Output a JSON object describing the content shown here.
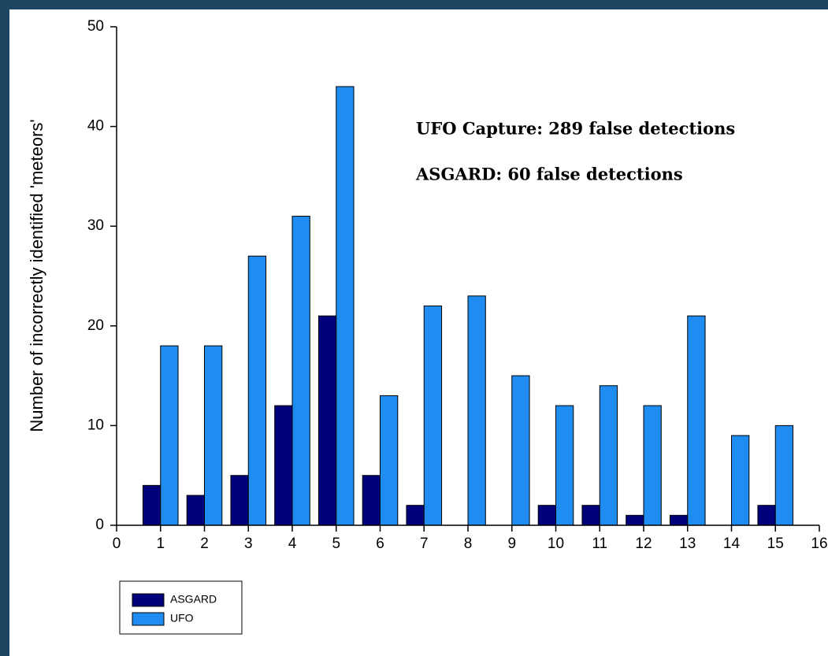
{
  "chart_data": {
    "type": "bar",
    "x": [
      1,
      2,
      3,
      4,
      5,
      6,
      7,
      8,
      9,
      10,
      11,
      12,
      13,
      14,
      15
    ],
    "series": [
      {
        "name": "ASGARD",
        "color": "#00007a",
        "values": [
          4,
          3,
          5,
          12,
          21,
          5,
          2,
          0,
          0,
          2,
          2,
          1,
          1,
          0,
          2
        ]
      },
      {
        "name": "UFO",
        "color": "#1e8cf0",
        "values": [
          18,
          18,
          27,
          31,
          44,
          13,
          22,
          23,
          15,
          12,
          14,
          12,
          21,
          9,
          10
        ]
      }
    ],
    "ylabel": "Number of incorrectly identified 'meteors'",
    "xlim": [
      0,
      16
    ],
    "xticks": [
      0,
      1,
      2,
      3,
      4,
      5,
      6,
      7,
      8,
      9,
      10,
      11,
      12,
      13,
      14,
      15,
      16
    ],
    "ylim": [
      0,
      50
    ],
    "yticks": [
      0,
      10,
      20,
      30,
      40,
      50
    ],
    "annotations": [
      "UFO Capture: 289 false detections",
      "ASGARD: 60 false detections"
    ],
    "legend": "below-left",
    "grid": false
  }
}
